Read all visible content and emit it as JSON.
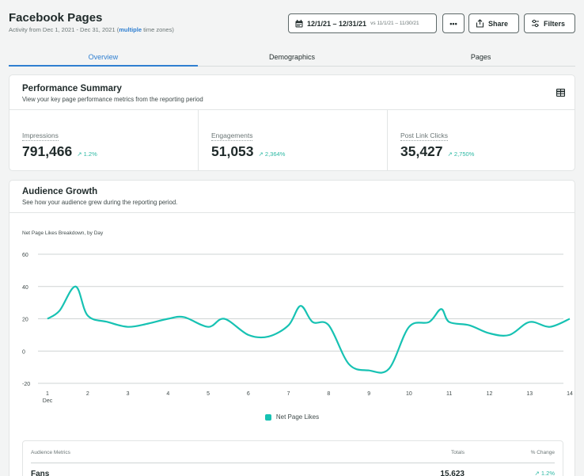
{
  "header": {
    "title": "Facebook Pages",
    "subtitle_prefix": "Activity from Dec 1, 2021 - Dec 31, 2021 (",
    "subtitle_link": "multiple",
    "subtitle_suffix": " time zones)"
  },
  "toolbar": {
    "date_range": "12/1/21 – 12/31/21",
    "compare_range": "vs 11/1/21 – 11/30/21",
    "more_label": "•••",
    "share_label": "Share",
    "filters_label": "Filters"
  },
  "tabs": [
    {
      "label": "Overview",
      "active": true
    },
    {
      "label": "Demographics",
      "active": false
    },
    {
      "label": "Pages",
      "active": false
    }
  ],
  "performance": {
    "title": "Performance Summary",
    "subtitle": "View your key page performance metrics from the reporting period",
    "metrics": [
      {
        "label": "Impressions",
        "value": "791,466",
        "change": "1.2%"
      },
      {
        "label": "Engagements",
        "value": "51,053",
        "change": "2,364%"
      },
      {
        "label": "Post Link Clicks",
        "value": "35,427",
        "change": "2,750%"
      }
    ]
  },
  "growth": {
    "title": "Audience Growth",
    "subtitle": "See how your audience grew during the reporting period.",
    "chart_title": "Net Page Likes Breakdown, by Day",
    "legend_label": "Net Page Likes"
  },
  "chart_data": {
    "type": "line",
    "title": "Net Page Likes Breakdown, by Day",
    "xlabel": "",
    "ylabel": "",
    "categories": [
      "1",
      "2",
      "3",
      "4",
      "5",
      "6",
      "7",
      "8",
      "9",
      "10",
      "11",
      "12",
      "13",
      "14"
    ],
    "x_sublabel": "Dec",
    "ylim": [
      -20,
      60
    ],
    "yticks": [
      -20,
      0,
      20,
      40,
      60
    ],
    "grid": true,
    "legend": "bottom",
    "series": [
      {
        "name": "Net Page Likes",
        "color": "#17c2b3",
        "x": [
          1,
          1.3,
          1.7,
          2,
          2.5,
          3,
          3.5,
          4,
          4.4,
          5,
          5.4,
          6,
          6.5,
          7,
          7.3,
          7.6,
          8,
          8.5,
          9,
          9.5,
          10,
          10.5,
          10.8,
          11,
          11.5,
          12,
          12.5,
          13,
          13.5,
          14
        ],
        "y": [
          20,
          25,
          40,
          22,
          18,
          15,
          17,
          20,
          21,
          15,
          20,
          10,
          9,
          16,
          28,
          18,
          16,
          -8,
          -12,
          -11,
          15,
          18,
          26,
          18,
          16,
          11,
          10,
          18,
          15,
          20
        ]
      }
    ]
  },
  "audience_table": {
    "col_metric": "Audience Metrics",
    "col_totals": "Totals",
    "col_change": "% Change",
    "rows": [
      {
        "label": "Fans",
        "total": "15,623",
        "change": "1.2%"
      }
    ]
  }
}
